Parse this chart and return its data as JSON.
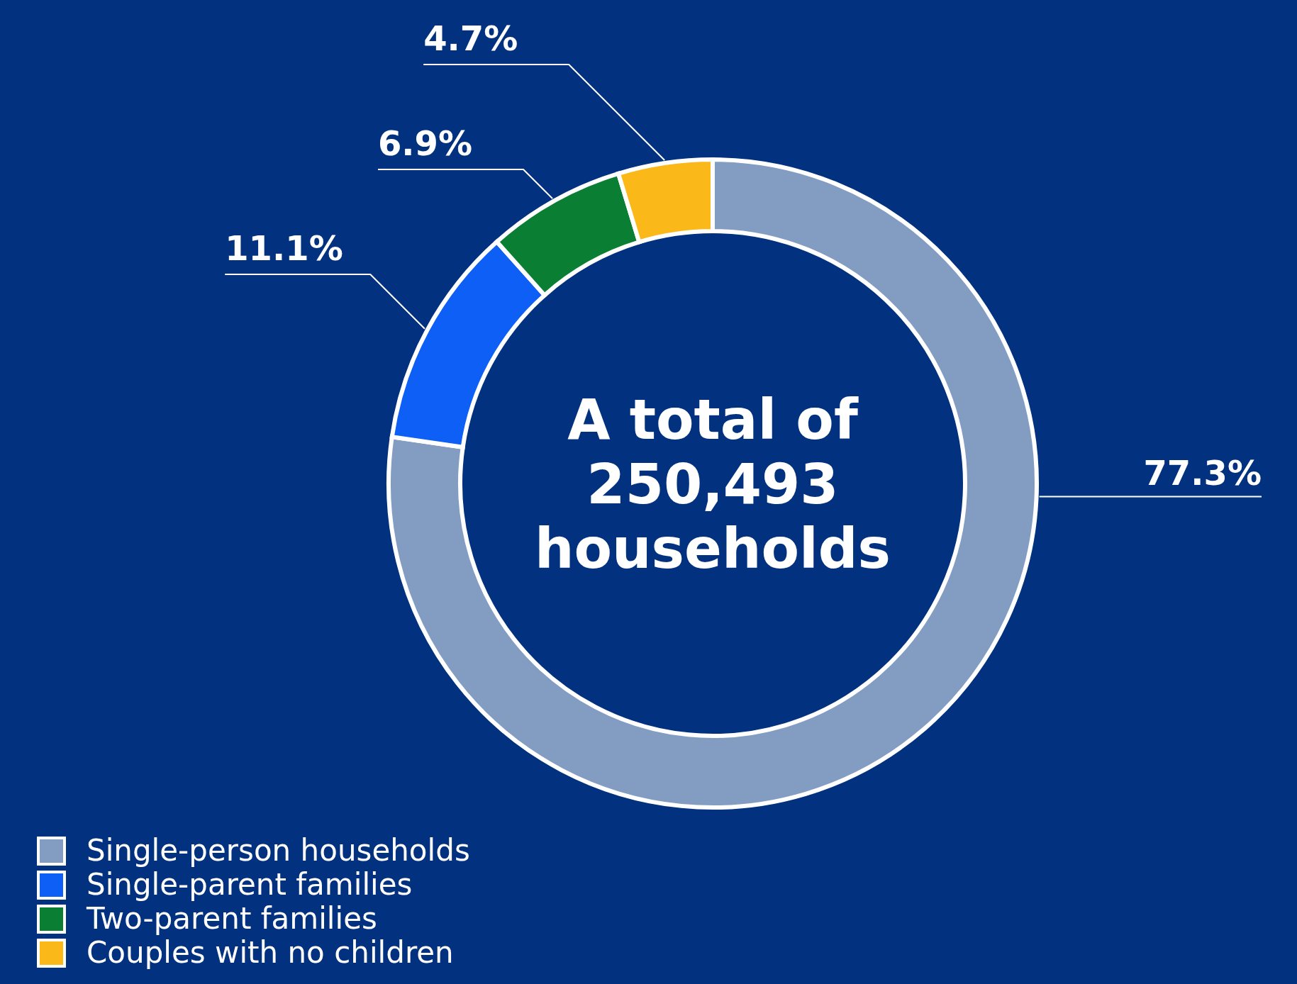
{
  "chart_data": {
    "type": "donut",
    "title": "A total of\n250,493\nhouseholds",
    "categories": [
      "Single-person households",
      "Single-parent families",
      "Two-parent families",
      "Couples with no children"
    ],
    "values": [
      77.3,
      11.1,
      6.9,
      4.7
    ],
    "colors": [
      "#839dc2",
      "#0d5ff5",
      "#0a7f33",
      "#fbb919"
    ],
    "value_labels": [
      "77.3%",
      "11.1%",
      "6.9%",
      "4.7%"
    ],
    "legend": "bottom left"
  }
}
